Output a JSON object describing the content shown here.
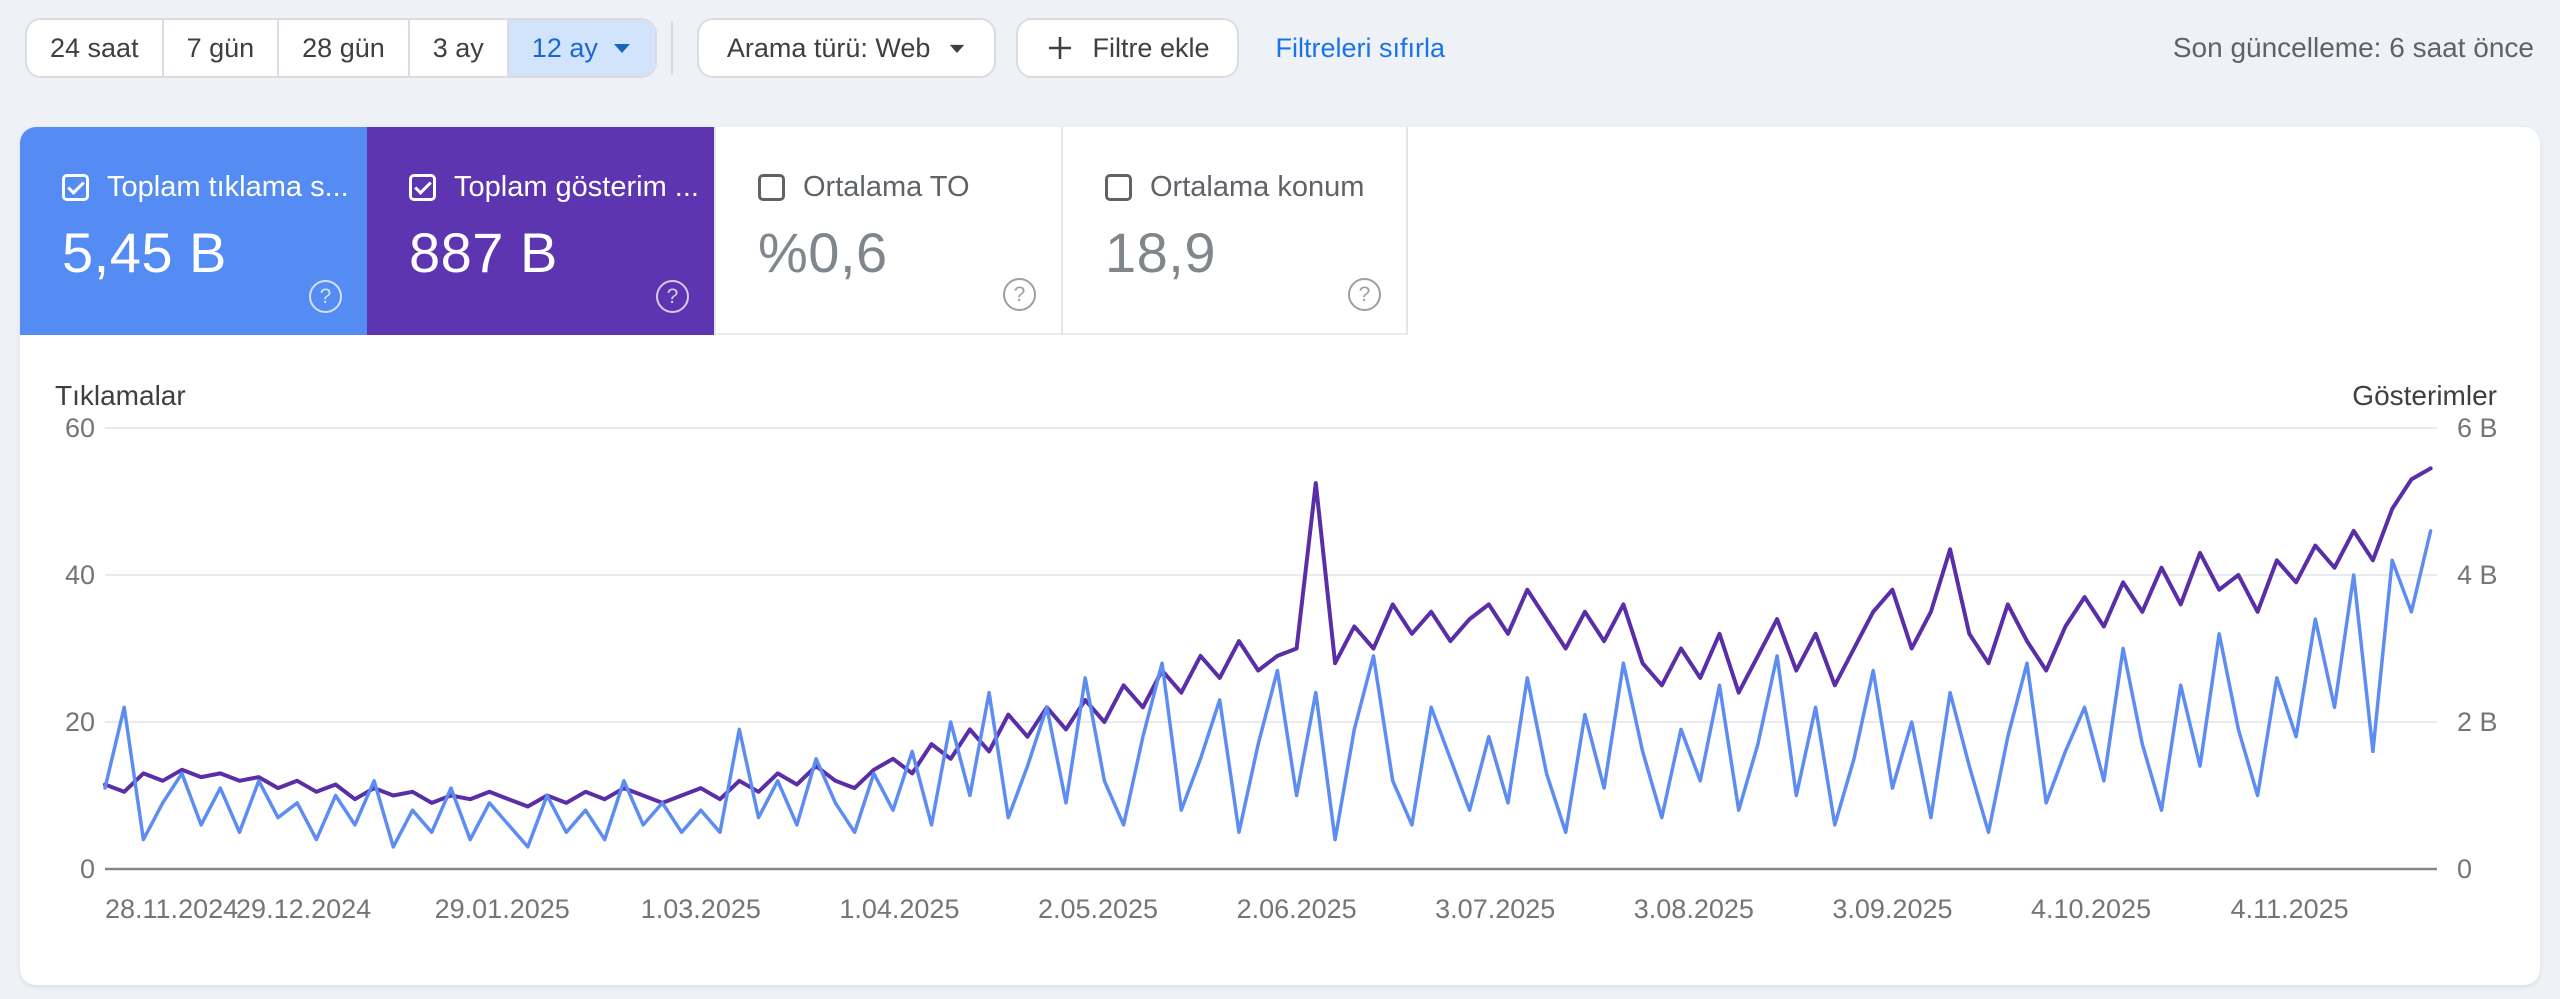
{
  "toolbar": {
    "date_ranges": [
      {
        "label": "24 saat",
        "selected": false
      },
      {
        "label": "7 gün",
        "selected": false
      },
      {
        "label": "28 gün",
        "selected": false
      },
      {
        "label": "3 ay",
        "selected": false
      },
      {
        "label": "12 ay",
        "selected": true,
        "has_caret": true
      }
    ],
    "search_type_label": "Arama türü: Web",
    "add_filter_label": "Filtre ekle",
    "reset_filters_label": "Filtreleri sıfırla",
    "last_update": "Son güncelleme: 6 saat önce"
  },
  "icons": {
    "help_glyph": "?"
  },
  "cards": [
    {
      "label": "Toplam tıklama s...",
      "value": "5,45 B",
      "checked": true,
      "bg": "#548cf4",
      "label_color": "#ffffff",
      "value_color": "#ffffff",
      "checkbox_color": "#ffffff",
      "help_color": "rgba(255,255,255,0.75)"
    },
    {
      "label": "Toplam gösterim ...",
      "value": "887 B",
      "checked": true,
      "bg": "#5e35b1",
      "label_color": "#ffffff",
      "value_color": "#ffffff",
      "checkbox_color": "#ffffff",
      "help_color": "rgba(255,255,255,0.75)"
    },
    {
      "label": "Ortalama TO",
      "value": "%0,6",
      "checked": false,
      "bg": "#ffffff",
      "label_color": "#5f6368",
      "value_color": "#80868b",
      "checkbox_color": "#5f6368",
      "help_color": "#9aa0a6"
    },
    {
      "label": "Ortalama konum",
      "value": "18,9",
      "checked": false,
      "bg": "#ffffff",
      "label_color": "#5f6368",
      "value_color": "#80868b",
      "checkbox_color": "#5f6368",
      "help_color": "#9aa0a6"
    }
  ],
  "chart_data": {
    "type": "line",
    "grid": true,
    "legend_position": "none",
    "left_axis": {
      "label": "Tıklamalar",
      "range": [
        0,
        60
      ],
      "ticks": [
        0,
        20,
        40,
        60
      ],
      "tick_labels": [
        "0",
        "20",
        "40",
        "60"
      ]
    },
    "right_axis": {
      "label": "Gösterimler",
      "range": [
        0,
        6
      ],
      "ticks": [
        0,
        2,
        4,
        6
      ],
      "tick_labels": [
        "0",
        "2 B",
        "4 B",
        "6 B"
      ]
    },
    "x_tick_labels": [
      "28.11.2024",
      "29.12.2024",
      "29.01.2025",
      "1.03.2025",
      "1.04.2025",
      "2.05.2025",
      "2.06.2025",
      "3.07.2025",
      "3.08.2025",
      "3.09.2025",
      "4.10.2025",
      "4.11.2025"
    ],
    "x_tick_days": [
      0,
      31,
      62,
      93,
      124,
      155,
      186,
      217,
      248,
      279,
      310,
      341
    ],
    "days_total": 364,
    "sample_step": 3,
    "series": [
      {
        "name": "Tıklamalar",
        "axis": "left",
        "color": "#5d8cf2",
        "width": 3.5,
        "values": [
          11,
          22,
          4,
          9,
          13,
          6,
          11,
          5,
          12,
          7,
          9,
          4,
          10,
          6,
          12,
          3,
          8,
          5,
          11,
          4,
          9,
          6,
          3,
          10,
          5,
          8,
          4,
          12,
          6,
          9,
          5,
          8,
          5,
          19,
          7,
          12,
          6,
          15,
          9,
          5,
          13,
          8,
          16,
          6,
          20,
          10,
          24,
          7,
          14,
          22,
          9,
          26,
          12,
          6,
          18,
          28,
          8,
          15,
          23,
          5,
          17,
          27,
          10,
          24,
          4,
          19,
          29,
          12,
          6,
          22,
          15,
          8,
          18,
          9,
          26,
          13,
          5,
          21,
          11,
          28,
          16,
          7,
          19,
          12,
          25,
          8,
          17,
          29,
          10,
          22,
          6,
          15,
          27,
          11,
          20,
          7,
          24,
          14,
          5,
          18,
          28,
          9,
          16,
          22,
          12,
          30,
          17,
          8,
          25,
          14,
          32,
          19,
          10,
          26,
          18,
          34,
          22,
          40,
          16,
          42,
          35,
          46
        ]
      },
      {
        "name": "Gösterimler",
        "axis": "right",
        "color": "#5a2ea6",
        "width": 4,
        "values": [
          1.15,
          1.05,
          1.3,
          1.2,
          1.35,
          1.25,
          1.3,
          1.2,
          1.25,
          1.1,
          1.2,
          1.05,
          1.15,
          0.95,
          1.1,
          1.0,
          1.05,
          0.9,
          1.0,
          0.95,
          1.05,
          0.95,
          0.85,
          1.0,
          0.9,
          1.05,
          0.95,
          1.1,
          1.0,
          0.9,
          1.0,
          1.1,
          0.95,
          1.2,
          1.05,
          1.3,
          1.15,
          1.4,
          1.2,
          1.1,
          1.35,
          1.5,
          1.3,
          1.7,
          1.5,
          1.9,
          1.6,
          2.1,
          1.8,
          2.2,
          1.9,
          2.3,
          2.0,
          2.5,
          2.2,
          2.7,
          2.4,
          2.9,
          2.6,
          3.1,
          2.7,
          2.9,
          3.0,
          5.25,
          2.8,
          3.3,
          3.0,
          3.6,
          3.2,
          3.5,
          3.1,
          3.4,
          3.6,
          3.2,
          3.8,
          3.4,
          3.0,
          3.5,
          3.1,
          3.6,
          2.8,
          2.5,
          3.0,
          2.6,
          3.2,
          2.4,
          2.9,
          3.4,
          2.7,
          3.2,
          2.5,
          3.0,
          3.5,
          3.8,
          3.0,
          3.5,
          4.35,
          3.2,
          2.8,
          3.6,
          3.1,
          2.7,
          3.3,
          3.7,
          3.3,
          3.9,
          3.5,
          4.1,
          3.6,
          4.3,
          3.8,
          4.0,
          3.5,
          4.2,
          3.9,
          4.4,
          4.1,
          4.6,
          4.2,
          4.9,
          5.3,
          5.45
        ]
      }
    ],
    "style": {
      "gridline_color": "#e9ebee",
      "axis_line_color": "#82878d",
      "tick_color": "#757575",
      "axis_title_color": "#3c4043"
    }
  }
}
